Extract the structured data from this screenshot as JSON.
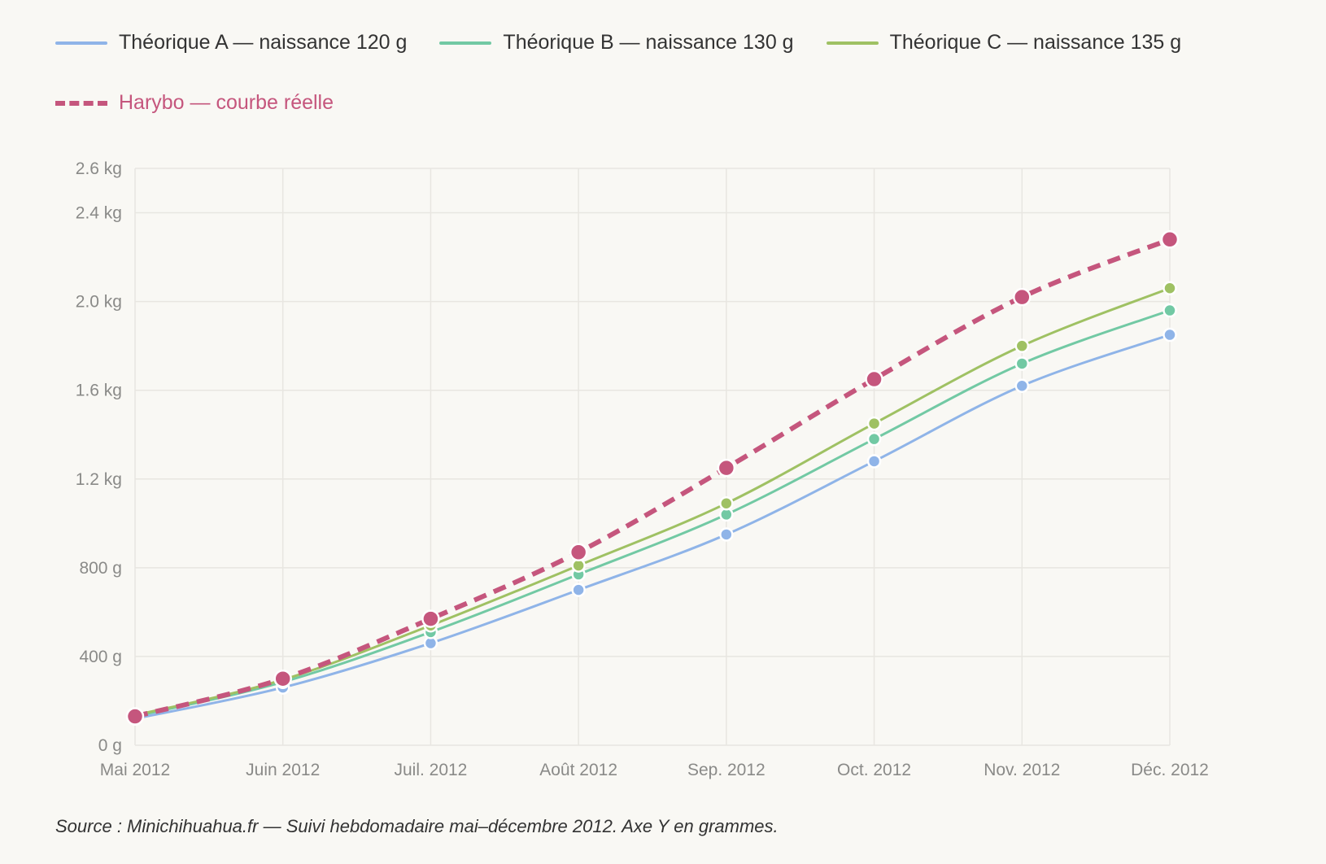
{
  "chart_data": {
    "type": "line",
    "title": "",
    "xlabel": "",
    "ylabel": "",
    "categories": [
      "Mai 2012",
      "Juin 2012",
      "Juil. 2012",
      "Août 2012",
      "Sep. 2012",
      "Oct. 2012",
      "Nov. 2012",
      "Déc. 2012"
    ],
    "ylim": [
      0,
      2600
    ],
    "yticks": [
      0,
      400,
      800,
      1200,
      1600,
      2000,
      2400,
      2600
    ],
    "ytick_labels": [
      "0 g",
      "400 g",
      "800 g",
      "1.2 kg",
      "1.6 kg",
      "2.0 kg",
      "2.4 kg",
      "2.6 kg"
    ],
    "grid": true,
    "legend_position": "top-left",
    "series": [
      {
        "name": "Théorique A — naissance 120 g",
        "color": "#8fb4e8",
        "style": "solid",
        "values": [
          120,
          260,
          460,
          700,
          950,
          1280,
          1620,
          1850
        ]
      },
      {
        "name": "Théorique B — naissance 130 g",
        "color": "#72c9a4",
        "style": "solid",
        "values": [
          130,
          285,
          510,
          770,
          1040,
          1380,
          1720,
          1960
        ]
      },
      {
        "name": "Théorique C — naissance 135 g",
        "color": "#9fc163",
        "style": "solid",
        "values": [
          135,
          295,
          540,
          810,
          1090,
          1450,
          1800,
          2060
        ]
      },
      {
        "name": "Harybo — courbe réelle",
        "color": "#c5567d",
        "style": "dashed",
        "values": [
          130,
          300,
          570,
          870,
          1250,
          1650,
          2020,
          2280
        ]
      }
    ]
  },
  "source": "Source : Minichihuahua.fr — Suivi hebdomadaire mai–décembre 2012. Axe Y en grammes."
}
